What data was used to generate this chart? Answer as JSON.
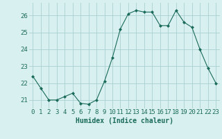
{
  "x": [
    0,
    1,
    2,
    3,
    4,
    5,
    6,
    7,
    8,
    9,
    10,
    11,
    12,
    13,
    14,
    15,
    16,
    17,
    18,
    19,
    20,
    21,
    22,
    23
  ],
  "y": [
    22.4,
    21.7,
    21.0,
    21.0,
    21.2,
    21.4,
    20.8,
    20.75,
    21.0,
    22.1,
    23.5,
    25.2,
    26.1,
    26.3,
    26.2,
    26.2,
    25.4,
    25.4,
    26.3,
    25.6,
    25.3,
    24.0,
    22.9,
    22.0
  ],
  "line_color": "#1a6b5a",
  "marker": "D",
  "marker_size": 2,
  "bg_color": "#d8f0ef",
  "grid_color": "#aacfcf",
  "tick_color": "#1a6b5a",
  "label_color": "#1a6b5a",
  "xlabel": "Humidex (Indice chaleur)",
  "xlabel_fontsize": 7,
  "xlim": [
    -0.5,
    23.5
  ],
  "ylim": [
    20.5,
    26.75
  ],
  "yticks": [
    21,
    22,
    23,
    24,
    25,
    26
  ],
  "xtick_labels": [
    "0",
    "1",
    "2",
    "3",
    "4",
    "5",
    "6",
    "7",
    "8",
    "9",
    "10",
    "11",
    "12",
    "13",
    "14",
    "15",
    "16",
    "17",
    "18",
    "19",
    "20",
    "21",
    "22",
    "23"
  ],
  "tick_fontsize": 6.5
}
